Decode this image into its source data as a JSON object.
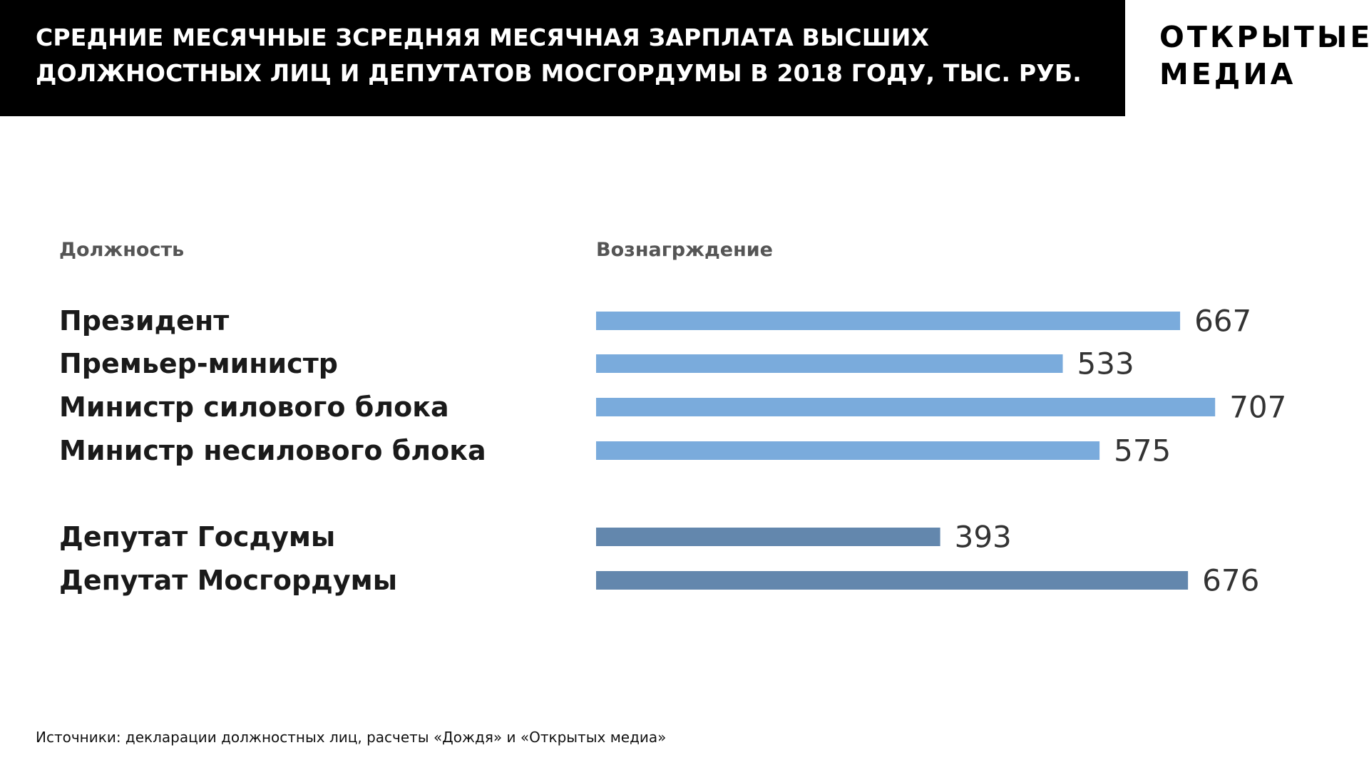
{
  "header": {
    "title_lines": [
      "СРЕДНИЕ МЕСЯЧНЫЕ ЗСРЕДНЯЯ МЕСЯЧНАЯ ЗАРПЛАТА ВЫСШИХ",
      "ДОЛЖНОСТНЫХ ЛИЦ И ДЕПУТАТОВ МОСГОРДУМЫ В 2018 ГОДУ, ТЫС. РУБ."
    ]
  },
  "logo": {
    "lines": [
      "ОТКРЫТЫЕ",
      "МЕДИА"
    ]
  },
  "columns": {
    "position": "Должность",
    "reward": "Вознагрждение"
  },
  "colors": {
    "header_background": "#000000",
    "header_text": "#ffffff",
    "officials_bar": "#7aabdc",
    "deputies_bar": "#6387ad"
  },
  "chart_data": {
    "type": "bar",
    "orientation": "horizontal",
    "title": "СРЕДНИЕ МЕСЯЧНЫЕ ЗСРЕДНЯЯ МЕСЯЧНАЯ ЗАРПЛАТА ВЫСШИХ ДОЛЖНОСТНЫХ ЛИЦ И ДЕПУТАТОВ МОСГОРДУМЫ В 2018 ГОДУ, ТЫС. РУБ.",
    "xlabel": "Вознагрждение",
    "ylabel": "Должность",
    "xlim": [
      0,
      707
    ],
    "grid": false,
    "categories": [
      "Президент",
      "Премьер-министр",
      "Министр силового блока",
      "Министр несилового блока",
      "Депутат Госдумы",
      "Депутат Мосгордумы"
    ],
    "values": [
      667,
      533,
      707,
      575,
      393,
      676
    ],
    "groups": [
      {
        "indices": [
          0,
          1,
          2,
          3
        ],
        "color": "#7aabdc"
      },
      {
        "indices": [
          4,
          5
        ],
        "color": "#6387ad"
      }
    ]
  },
  "source": "Источники: декларации должностных лиц, расчеты «Дождя» и «Открытых медиа»"
}
